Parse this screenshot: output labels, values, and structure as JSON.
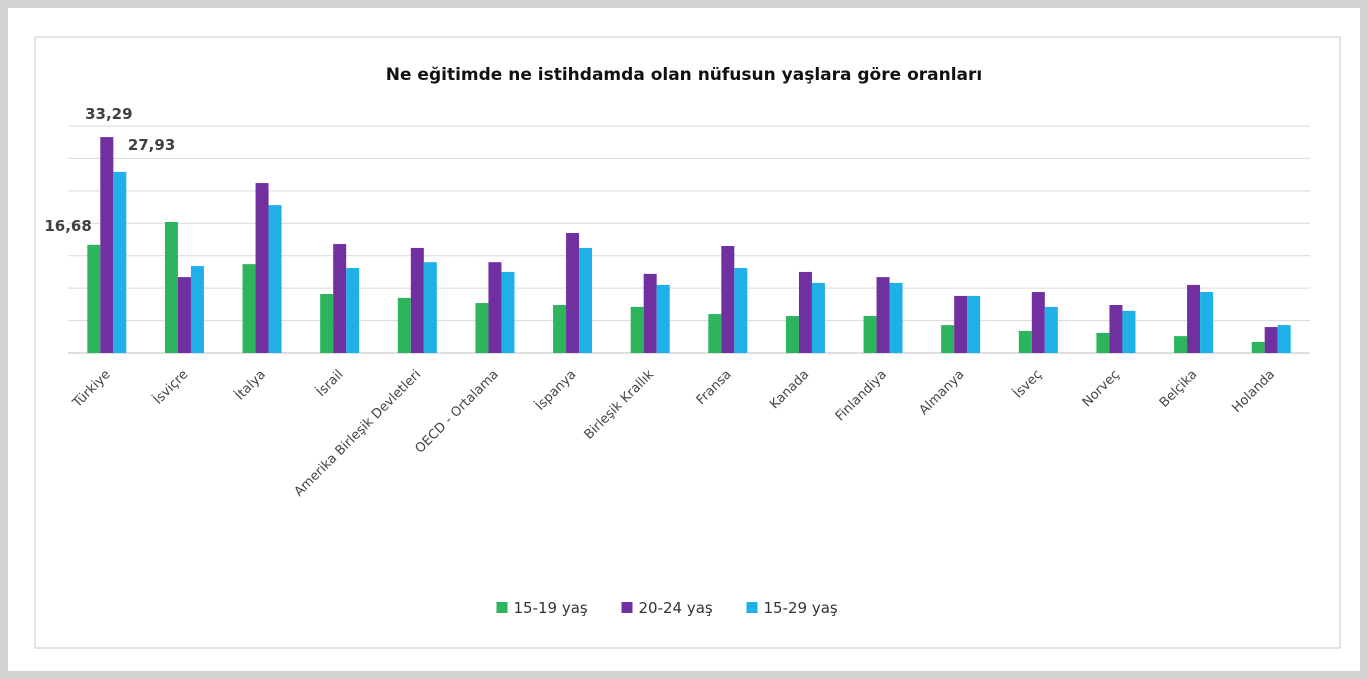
{
  "chart_data": {
    "type": "bar",
    "title": "Ne eğitimde ne istihdamda olan nüfusun yaşlara göre oranları",
    "categories": [
      "Türkiye",
      "İsviçre",
      "İtalya",
      "İsrail",
      "Amerika Birleşik Devletleri",
      "OECD - Ortalama",
      "İspanya",
      "Birleşik Krallık",
      "Fransa",
      "Kanada",
      "Finlandiya",
      "Almanya",
      "İsveç",
      "Norveç",
      "Belçika",
      "Holanda"
    ],
    "series": [
      {
        "name": "15-19 yaş",
        "color": "#2db55d",
        "values": [
          16.68,
          20.2,
          13.7,
          9.1,
          8.5,
          7.7,
          7.4,
          7.1,
          6.0,
          5.7,
          5.7,
          4.3,
          3.4,
          3.1,
          2.6,
          1.7
        ],
        "value_labels": [
          "16,68",
          null,
          null,
          null,
          null,
          null,
          null,
          null,
          null,
          null,
          null,
          null,
          null,
          null,
          null,
          null
        ]
      },
      {
        "name": "20-24 yaş",
        "color": "#7030a0",
        "values": [
          33.29,
          11.7,
          26.2,
          16.8,
          16.2,
          14.0,
          18.5,
          12.2,
          16.5,
          12.5,
          11.7,
          8.8,
          9.4,
          7.4,
          10.5,
          4.0
        ],
        "value_labels": [
          "33,29",
          null,
          null,
          null,
          null,
          null,
          null,
          null,
          null,
          null,
          null,
          null,
          null,
          null,
          null,
          null
        ]
      },
      {
        "name": "15-29 yaş",
        "color": "#1fb0e8",
        "values": [
          27.93,
          13.4,
          22.8,
          13.1,
          14.0,
          12.5,
          16.2,
          10.5,
          13.1,
          10.8,
          10.8,
          8.8,
          7.1,
          6.5,
          9.4,
          4.3
        ],
        "value_labels": [
          "27,93",
          null,
          null,
          null,
          null,
          null,
          null,
          null,
          null,
          null,
          null,
          null,
          null,
          null,
          null,
          null
        ]
      }
    ],
    "ylim": [
      0,
      35
    ],
    "yticks": [
      0,
      5,
      10,
      15,
      20,
      25,
      30,
      35
    ],
    "grid": true,
    "legend": "bottom"
  }
}
